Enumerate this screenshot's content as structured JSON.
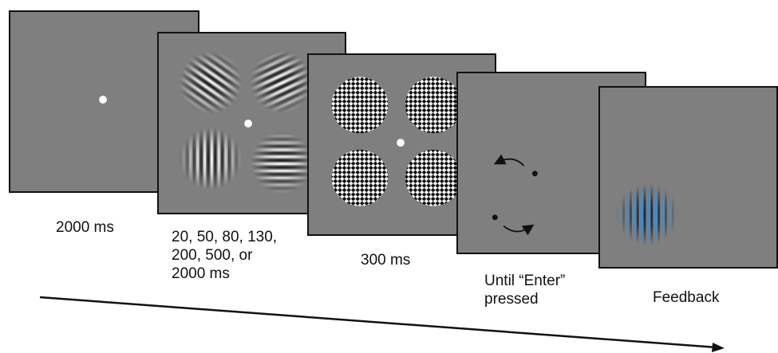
{
  "colors": {
    "background": "#ffffff",
    "screen_gray": "#7f7f7f",
    "frame_border": "#111111",
    "fixation": "#ffffff",
    "feedback_stripe": "#2f8fe0",
    "text": "#111111"
  },
  "screens": [
    {
      "id": "fixation",
      "caption_lines": [
        "2000 ms"
      ]
    },
    {
      "id": "gabor-array",
      "caption_lines": [
        "20, 50, 80, 130,",
        "200, 500, or",
        "2000 ms"
      ]
    },
    {
      "id": "checkerboard-mask",
      "caption_lines": [
        "300 ms"
      ]
    },
    {
      "id": "response-cue",
      "caption_lines": [
        "Until “Enter”",
        "pressed"
      ]
    },
    {
      "id": "feedback",
      "caption_lines": [
        "Feedback"
      ]
    }
  ],
  "icons": {
    "fixation": "fixation-dot-icon",
    "gabor": "gabor-patch-icon",
    "mask": "checkerboard-mask-icon",
    "rotate": "rotation-arrow-icon",
    "timeline": "time-arrow-icon"
  }
}
